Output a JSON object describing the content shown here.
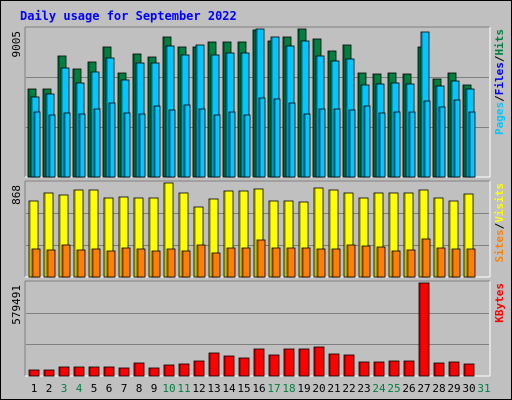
{
  "title": "Daily usage for September 2022",
  "colors": {
    "hits": "#008040",
    "files": "#00c8ff",
    "pages": "#00c8ff",
    "visits": "#ffff00",
    "sites": "#ff8000",
    "kbytes": "#ff0000",
    "plot_bg": "#c0c0c0",
    "grid": "#808080",
    "weekend_label": "#008040",
    "weekday_label": "#000000"
  },
  "chart_data": [
    {
      "type": "bar",
      "panel": "hits-files-pages",
      "y_max_label": "9005",
      "ylim": [
        0,
        9005
      ],
      "right_labels": {
        "pages": "Pages",
        "sep1": "/",
        "files": "Files",
        "sep2": "/",
        "hits": "Hits"
      },
      "x": [
        1,
        2,
        3,
        4,
        5,
        6,
        7,
        8,
        9,
        10,
        11,
        12,
        13,
        14,
        15,
        16,
        17,
        18,
        19,
        20,
        21,
        22,
        23,
        24,
        25,
        26,
        27,
        28,
        29,
        30
      ],
      "series": [
        {
          "name": "Hits",
          "values": [
            5380,
            5380,
            7340,
            6550,
            6970,
            7940,
            6340,
            7460,
            7320,
            8540,
            7940,
            7940,
            8240,
            8240,
            8240,
            8930,
            8300,
            8540,
            9010,
            8410,
            7660,
            8010,
            6300,
            6240,
            6300,
            6240,
            7940,
            5940,
            6300,
            5570
          ]
        },
        {
          "name": "Files",
          "values": [
            4880,
            5080,
            6650,
            5720,
            6410,
            7270,
            5920,
            6920,
            6960,
            7990,
            7450,
            8040,
            7450,
            7530,
            7520,
            9000,
            8540,
            7980,
            8270,
            7390,
            7060,
            7150,
            5580,
            5680,
            5740,
            5650,
            8810,
            5510,
            5820,
            5380
          ]
        },
        {
          "name": "Pages",
          "values": [
            3950,
            3760,
            3900,
            3840,
            4160,
            4530,
            3920,
            3840,
            4300,
            4060,
            4390,
            4160,
            3790,
            3970,
            3770,
            4820,
            4720,
            4500,
            3820,
            4160,
            4160,
            4090,
            4340,
            3910,
            3940,
            3980,
            4650,
            4240,
            4690,
            3960
          ]
        }
      ]
    },
    {
      "type": "bar",
      "panel": "visits-sites",
      "y_max_label": "868",
      "ylim": [
        0,
        868
      ],
      "right_labels": {
        "sites": "Sites",
        "sep": "/",
        "visits": "Visits"
      },
      "x": [
        1,
        2,
        3,
        4,
        5,
        6,
        7,
        8,
        9,
        10,
        11,
        12,
        13,
        14,
        15,
        16,
        17,
        18,
        19,
        20,
        21,
        22,
        23,
        24,
        25,
        26,
        27,
        28,
        29,
        30
      ],
      "series": [
        {
          "name": "Visits",
          "values": [
            700,
            780,
            760,
            800,
            800,
            730,
            740,
            730,
            730,
            870,
            780,
            650,
            720,
            790,
            790,
            810,
            700,
            700,
            690,
            820,
            800,
            780,
            730,
            780,
            780,
            780,
            800,
            730,
            700,
            770
          ]
        },
        {
          "name": "Sites",
          "values": [
            260,
            250,
            300,
            250,
            260,
            240,
            270,
            260,
            240,
            260,
            240,
            300,
            220,
            270,
            270,
            340,
            270,
            270,
            270,
            260,
            260,
            300,
            290,
            280,
            240,
            250,
            350,
            270,
            260,
            260
          ]
        }
      ]
    },
    {
      "type": "bar",
      "panel": "kbytes",
      "y_max_label": "579491",
      "ylim": [
        0,
        579491
      ],
      "right_labels": {
        "kbytes": "KBytes"
      },
      "x": [
        1,
        2,
        3,
        4,
        5,
        6,
        7,
        8,
        9,
        10,
        11,
        12,
        13,
        14,
        15,
        16,
        17,
        18,
        19,
        20,
        21,
        22,
        23,
        24,
        25,
        26,
        27,
        28,
        29,
        30
      ],
      "series": [
        {
          "name": "KBytes",
          "values": [
            38000,
            39000,
            53000,
            53000,
            57000,
            55000,
            50000,
            81000,
            48000,
            70000,
            73000,
            95000,
            144000,
            122000,
            113000,
            171000,
            130000,
            167000,
            170000,
            179000,
            139000,
            132000,
            89000,
            88000,
            91000,
            94000,
            579491,
            82000,
            88000,
            77000
          ]
        }
      ]
    }
  ],
  "x_labels": [
    {
      "label": "1",
      "weekend": false
    },
    {
      "label": "2",
      "weekend": false
    },
    {
      "label": "3",
      "weekend": true
    },
    {
      "label": "4",
      "weekend": true
    },
    {
      "label": "5",
      "weekend": false
    },
    {
      "label": "6",
      "weekend": false
    },
    {
      "label": "7",
      "weekend": false
    },
    {
      "label": "8",
      "weekend": false
    },
    {
      "label": "9",
      "weekend": false
    },
    {
      "label": "10",
      "weekend": true
    },
    {
      "label": "11",
      "weekend": true
    },
    {
      "label": "12",
      "weekend": false
    },
    {
      "label": "13",
      "weekend": false
    },
    {
      "label": "14",
      "weekend": false
    },
    {
      "label": "15",
      "weekend": false
    },
    {
      "label": "16",
      "weekend": false
    },
    {
      "label": "17",
      "weekend": true
    },
    {
      "label": "18",
      "weekend": true
    },
    {
      "label": "19",
      "weekend": false
    },
    {
      "label": "20",
      "weekend": false
    },
    {
      "label": "21",
      "weekend": false
    },
    {
      "label": "22",
      "weekend": false
    },
    {
      "label": "23",
      "weekend": false
    },
    {
      "label": "24",
      "weekend": true
    },
    {
      "label": "25",
      "weekend": true
    },
    {
      "label": "26",
      "weekend": false
    },
    {
      "label": "27",
      "weekend": false
    },
    {
      "label": "28",
      "weekend": false
    },
    {
      "label": "29",
      "weekend": false
    },
    {
      "label": "30",
      "weekend": false
    },
    {
      "label": "31",
      "weekend": true
    }
  ]
}
